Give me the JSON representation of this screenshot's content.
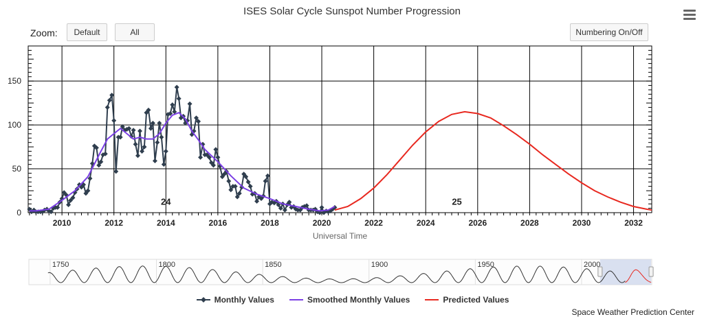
{
  "toolbar": {
    "zoom_label": "Zoom:",
    "default_label": "Default",
    "all_label": "All",
    "numbering_label": "Numbering On/Off",
    "menu_icon": "hamburger-menu-icon"
  },
  "credit": "Space Weather Prediction Center",
  "colors": {
    "monthly": "#2f3e4e",
    "smoothed": "#7b3fe4",
    "predicted": "#e8281f",
    "navigator_fill": "#d0d8ec",
    "grid": "#000000"
  },
  "chart_data": {
    "type": "line",
    "title": "ISES Solar Cycle Sunspot Number Progression",
    "xlabel": "Universal Time",
    "ylabel": "",
    "xlim": [
      2008.7,
      2032.7
    ],
    "ylim": [
      0,
      190
    ],
    "x_ticks": [
      "2010",
      "2012",
      "2014",
      "2016",
      "2018",
      "2020",
      "2022",
      "2024",
      "2026",
      "2028",
      "2030",
      "2032"
    ],
    "y_ticks": [
      "0",
      "50",
      "100",
      "150"
    ],
    "cycle_labels": [
      {
        "label": "24",
        "x": 2014.0,
        "y": 12
      },
      {
        "label": "25",
        "x": 2025.2,
        "y": 12
      }
    ],
    "legend": [
      "Monthly Values",
      "Smoothed Monthly Values",
      "Predicted Values"
    ],
    "legend_position": "bottom-center",
    "grid": true,
    "series": [
      {
        "name": "Monthly Values",
        "x": [
          2008.75,
          2008.83,
          2008.92,
          2009.0,
          2009.08,
          2009.17,
          2009.25,
          2009.33,
          2009.42,
          2009.5,
          2009.58,
          2009.67,
          2009.75,
          2009.83,
          2009.92,
          2010.0,
          2010.08,
          2010.17,
          2010.25,
          2010.33,
          2010.42,
          2010.5,
          2010.58,
          2010.67,
          2010.75,
          2010.83,
          2010.92,
          2011.0,
          2011.08,
          2011.17,
          2011.25,
          2011.33,
          2011.42,
          2011.5,
          2011.58,
          2011.67,
          2011.75,
          2011.83,
          2011.92,
          2012.0,
          2012.08,
          2012.17,
          2012.25,
          2012.33,
          2012.42,
          2012.5,
          2012.58,
          2012.67,
          2012.75,
          2012.83,
          2012.92,
          2013.0,
          2013.08,
          2013.17,
          2013.25,
          2013.33,
          2013.42,
          2013.5,
          2013.58,
          2013.67,
          2013.75,
          2013.83,
          2013.92,
          2014.0,
          2014.08,
          2014.17,
          2014.25,
          2014.33,
          2014.42,
          2014.5,
          2014.58,
          2014.67,
          2014.75,
          2014.83,
          2014.92,
          2015.0,
          2015.08,
          2015.17,
          2015.25,
          2015.33,
          2015.42,
          2015.5,
          2015.58,
          2015.67,
          2015.75,
          2015.83,
          2015.92,
          2016.0,
          2016.08,
          2016.17,
          2016.25,
          2016.33,
          2016.42,
          2016.5,
          2016.58,
          2016.67,
          2016.75,
          2016.83,
          2016.92,
          2017.0,
          2017.08,
          2017.17,
          2017.25,
          2017.33,
          2017.42,
          2017.5,
          2017.58,
          2017.67,
          2017.75,
          2017.83,
          2017.92,
          2018.0,
          2018.08,
          2018.17,
          2018.25,
          2018.33,
          2018.42,
          2018.5,
          2018.58,
          2018.67,
          2018.75,
          2018.83,
          2018.92,
          2019.0,
          2019.08,
          2019.17,
          2019.25,
          2019.33,
          2019.42,
          2019.5,
          2019.58,
          2019.67,
          2019.75,
          2019.83,
          2019.92,
          2020.0,
          2020.08,
          2020.17,
          2020.25,
          2020.33,
          2020.42,
          2020.5
        ],
        "y": [
          4,
          1,
          3,
          1,
          1,
          1,
          1,
          3,
          4,
          2,
          1,
          5,
          6,
          6,
          12,
          16,
          23,
          20,
          9,
          14,
          17,
          23,
          27,
          32,
          29,
          32,
          22,
          25,
          39,
          56,
          76,
          74,
          54,
          58,
          66,
          67,
          120,
          128,
          134,
          105,
          47,
          86,
          86,
          98,
          94,
          95,
          96,
          87,
          94,
          78,
          65,
          93,
          70,
          75,
          114,
          117,
          96,
          102,
          59,
          80,
          102,
          86,
          55,
          70,
          112,
          113,
          123,
          115,
          143,
          130,
          108,
          110,
          102,
          105,
          124,
          89,
          93,
          108,
          104,
          63,
          78,
          66,
          66,
          63,
          57,
          54,
          72,
          63,
          53,
          41,
          44,
          47,
          36,
          26,
          30,
          30,
          18,
          22,
          29,
          44,
          41,
          35,
          30,
          21,
          22,
          13,
          18,
          16,
          19,
          36,
          42,
          10,
          12,
          11,
          13,
          9,
          5,
          10,
          3,
          9,
          12,
          6,
          7,
          4,
          3,
          3,
          6,
          7,
          8,
          3,
          3,
          3,
          4,
          1,
          0,
          6,
          0,
          2,
          1,
          2,
          4,
          6
        ]
      },
      {
        "name": "Smoothed Monthly Values",
        "x": [
          2008.75,
          2009.0,
          2009.5,
          2010.0,
          2010.5,
          2011.0,
          2011.5,
          2011.75,
          2012.0,
          2012.25,
          2012.5,
          2012.75,
          2013.0,
          2013.25,
          2013.5,
          2013.75,
          2014.0,
          2014.25,
          2014.5,
          2014.75,
          2015.0,
          2015.25,
          2015.5,
          2015.75,
          2016.0,
          2016.5,
          2017.0,
          2017.5,
          2018.0,
          2018.5,
          2019.0,
          2019.5,
          2019.92,
          2020.25,
          2020.5
        ],
        "y": [
          2,
          2,
          4,
          14,
          25,
          41,
          70,
          84,
          90,
          96,
          90,
          84,
          86,
          84,
          84,
          90,
          102,
          111,
          114,
          107,
          93,
          83,
          72,
          65,
          58,
          42,
          28,
          21,
          16,
          10,
          7,
          4,
          2,
          3,
          7
        ]
      },
      {
        "name": "Predicted Values",
        "x": [
          2020.5,
          2021.0,
          2021.5,
          2022.0,
          2022.5,
          2023.0,
          2023.5,
          2024.0,
          2024.5,
          2025.0,
          2025.5,
          2026.0,
          2026.5,
          2027.0,
          2027.5,
          2028.0,
          2028.5,
          2029.0,
          2029.5,
          2030.0,
          2030.5,
          2031.0,
          2031.5,
          2032.0,
          2032.5,
          2032.7
        ],
        "y": [
          3,
          7,
          16,
          28,
          43,
          60,
          77,
          92,
          104,
          112,
          115,
          113,
          108,
          99,
          89,
          78,
          66,
          55,
          44,
          34,
          25,
          18,
          12,
          7,
          4,
          3
        ]
      }
    ]
  },
  "navigator": {
    "ticks": [
      "1750",
      "1800",
      "1850",
      "1900",
      "1950",
      "2000"
    ]
  }
}
